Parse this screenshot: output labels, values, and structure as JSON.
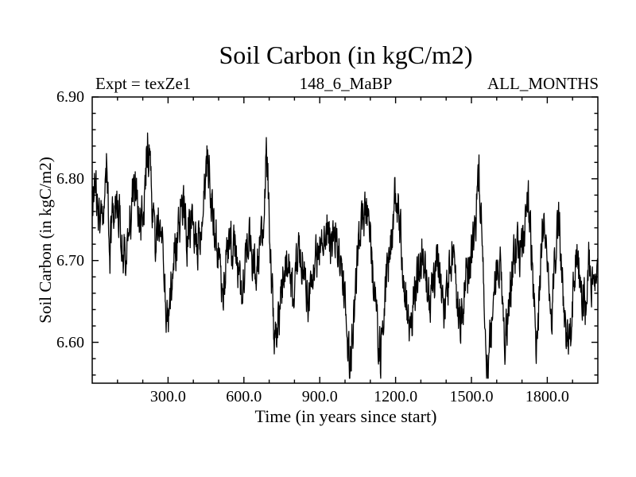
{
  "window": {
    "background": "#ffffff",
    "foreground": "#000000"
  },
  "chart": {
    "title": "Soil Carbon (in kgC/m2)",
    "experiment_label": "Expt = texZe1",
    "dataset_label": "148_6_MaBP",
    "months_label": "ALL_MONTHS",
    "xlabel": "Time (in years since start)",
    "ylabel": "Soil Carbon (in kgC/m2)"
  },
  "chart_data": {
    "type": "line",
    "title": "Soil Carbon (in kgC/m2)",
    "xlabel": "Time (in years since start)",
    "ylabel": "Soil Carbon (in kgC/m2)",
    "xlim": [
      0,
      2000
    ],
    "ylim": [
      6.55,
      6.9
    ],
    "grid": false,
    "legend": "none",
    "frame": "box-with-inward-ticks",
    "line_color": "#000000",
    "x_major_ticks": [
      300,
      600,
      900,
      1200,
      1500,
      1800
    ],
    "x_tick_labels": [
      "300.0",
      "600.0",
      "900.0",
      "1200.0",
      "1500.0",
      "1800.0"
    ],
    "x_minor_step": 100,
    "y_major_ticks": [
      6.9,
      6.8,
      6.7,
      6.6
    ],
    "y_tick_labels": [
      "6.90",
      "6.80",
      "6.70",
      "6.60"
    ],
    "y_minor_step": 0.02,
    "series": [
      {
        "name": "soil_carbon",
        "description": "noisy annual soil carbon time series; trend_points are [year, kgC/m2] anchors read from the plot, with high-frequency noise of ~±0.03 kgC/m2 around them",
        "trend_points": [
          [
            0,
            6.77
          ],
          [
            15,
            6.79
          ],
          [
            30,
            6.75
          ],
          [
            45,
            6.76
          ],
          [
            57,
            6.82
          ],
          [
            70,
            6.72
          ],
          [
            85,
            6.77
          ],
          [
            100,
            6.78
          ],
          [
            115,
            6.73
          ],
          [
            130,
            6.7
          ],
          [
            145,
            6.73
          ],
          [
            160,
            6.78
          ],
          [
            175,
            6.8
          ],
          [
            190,
            6.74
          ],
          [
            205,
            6.77
          ],
          [
            220,
            6.855
          ],
          [
            235,
            6.77
          ],
          [
            250,
            6.72
          ],
          [
            265,
            6.76
          ],
          [
            280,
            6.7
          ],
          [
            300,
            6.615
          ],
          [
            315,
            6.68
          ],
          [
            330,
            6.72
          ],
          [
            345,
            6.75
          ],
          [
            360,
            6.77
          ],
          [
            375,
            6.73
          ],
          [
            390,
            6.75
          ],
          [
            405,
            6.74
          ],
          [
            420,
            6.72
          ],
          [
            435,
            6.76
          ],
          [
            455,
            6.83
          ],
          [
            470,
            6.78
          ],
          [
            485,
            6.73
          ],
          [
            500,
            6.71
          ],
          [
            515,
            6.655
          ],
          [
            530,
            6.7
          ],
          [
            545,
            6.73
          ],
          [
            560,
            6.72
          ],
          [
            575,
            6.7
          ],
          [
            590,
            6.66
          ],
          [
            605,
            6.7
          ],
          [
            620,
            6.73
          ],
          [
            635,
            6.7
          ],
          [
            650,
            6.68
          ],
          [
            665,
            6.72
          ],
          [
            680,
            6.76
          ],
          [
            690,
            6.84
          ],
          [
            705,
            6.72
          ],
          [
            720,
            6.6
          ],
          [
            735,
            6.63
          ],
          [
            750,
            6.67
          ],
          [
            765,
            6.7
          ],
          [
            780,
            6.68
          ],
          [
            795,
            6.65
          ],
          [
            810,
            6.7
          ],
          [
            825,
            6.72
          ],
          [
            840,
            6.68
          ],
          [
            855,
            6.64
          ],
          [
            870,
            6.68
          ],
          [
            885,
            6.7
          ],
          [
            900,
            6.71
          ],
          [
            915,
            6.73
          ],
          [
            930,
            6.74
          ],
          [
            945,
            6.72
          ],
          [
            960,
            6.74
          ],
          [
            975,
            6.72
          ],
          [
            990,
            6.68
          ],
          [
            1005,
            6.62
          ],
          [
            1020,
            6.565
          ],
          [
            1035,
            6.64
          ],
          [
            1050,
            6.7
          ],
          [
            1065,
            6.73
          ],
          [
            1080,
            6.77
          ],
          [
            1095,
            6.74
          ],
          [
            1110,
            6.68
          ],
          [
            1125,
            6.62
          ],
          [
            1140,
            6.58
          ],
          [
            1155,
            6.65
          ],
          [
            1170,
            6.7
          ],
          [
            1185,
            6.72
          ],
          [
            1200,
            6.79
          ],
          [
            1215,
            6.75
          ],
          [
            1230,
            6.69
          ],
          [
            1245,
            6.64
          ],
          [
            1260,
            6.61
          ],
          [
            1275,
            6.66
          ],
          [
            1290,
            6.69
          ],
          [
            1305,
            6.72
          ],
          [
            1320,
            6.69
          ],
          [
            1335,
            6.65
          ],
          [
            1350,
            6.67
          ],
          [
            1365,
            6.7
          ],
          [
            1380,
            6.67
          ],
          [
            1395,
            6.64
          ],
          [
            1410,
            6.68
          ],
          [
            1425,
            6.72
          ],
          [
            1440,
            6.66
          ],
          [
            1455,
            6.63
          ],
          [
            1470,
            6.66
          ],
          [
            1485,
            6.68
          ],
          [
            1500,
            6.7
          ],
          [
            1515,
            6.74
          ],
          [
            1530,
            6.8
          ],
          [
            1545,
            6.7
          ],
          [
            1560,
            6.56
          ],
          [
            1575,
            6.6
          ],
          [
            1590,
            6.66
          ],
          [
            1605,
            6.71
          ],
          [
            1620,
            6.67
          ],
          [
            1635,
            6.6
          ],
          [
            1650,
            6.65
          ],
          [
            1665,
            6.7
          ],
          [
            1680,
            6.73
          ],
          [
            1695,
            6.7
          ],
          [
            1710,
            6.74
          ],
          [
            1725,
            6.78
          ],
          [
            1740,
            6.7
          ],
          [
            1755,
            6.6
          ],
          [
            1770,
            6.66
          ],
          [
            1785,
            6.76
          ],
          [
            1800,
            6.7
          ],
          [
            1815,
            6.63
          ],
          [
            1830,
            6.7
          ],
          [
            1845,
            6.74
          ],
          [
            1860,
            6.68
          ],
          [
            1875,
            6.61
          ],
          [
            1890,
            6.59
          ],
          [
            1905,
            6.68
          ],
          [
            1920,
            6.71
          ],
          [
            1935,
            6.67
          ],
          [
            1950,
            6.64
          ],
          [
            1965,
            6.7
          ],
          [
            1980,
            6.66
          ],
          [
            2000,
            6.69
          ]
        ],
        "noise": {
          "seed": 20481,
          "ar": 0.45,
          "scale": 0.026,
          "step_years": 1.25,
          "clip": [
            6.556,
            6.872
          ]
        }
      }
    ]
  }
}
